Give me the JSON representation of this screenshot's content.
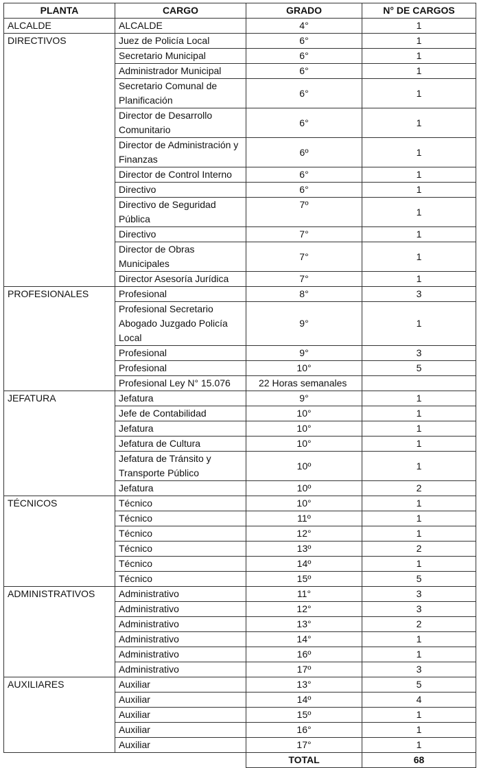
{
  "headers": {
    "planta": "PLANTA",
    "cargo": "CARGO",
    "grado": "GRADO",
    "n": "N° DE CARGOS"
  },
  "groups": [
    {
      "planta": "ALCALDE",
      "rows": [
        {
          "cargo": "ALCALDE",
          "grado": "4°",
          "n": "1"
        }
      ]
    },
    {
      "planta": "DIRECTIVOS",
      "rows": [
        {
          "cargo": "Juez de Policía Local",
          "grado": "6°",
          "n": "1"
        },
        {
          "cargo": "Secretario Municipal",
          "grado": "6°",
          "n": "1"
        },
        {
          "cargo": "Administrador Municipal",
          "grado": "6°",
          "n": "1"
        },
        {
          "cargo": "Secretario Comunal de Planificación",
          "grado": "6°",
          "n": "1"
        },
        {
          "cargo": "Director de Desarrollo Comunitario",
          "grado": "6°",
          "n": "1"
        },
        {
          "cargo": "Director de Administración y Finanzas",
          "grado": "6º",
          "n": "1"
        },
        {
          "cargo": "Director de Control Interno",
          "grado": "6°",
          "n": "1"
        },
        {
          "cargo": "Directivo",
          "grado": "6°",
          "n": "1"
        },
        {
          "cargo": "Directivo de Seguridad Pública",
          "grado": "7º",
          "n": "1"
        },
        {
          "cargo": "Directivo",
          "grado": "7°",
          "n": "1"
        },
        {
          "cargo": "Director de Obras Municipales",
          "grado": "7°",
          "n": "1"
        },
        {
          "cargo": "Director Asesoría Jurídica",
          "grado": "7°",
          "n": "1"
        }
      ]
    },
    {
      "planta": "PROFESIONALES",
      "rows": [
        {
          "cargo": "Profesional",
          "grado": "8°",
          "n": "3"
        },
        {
          "cargo": "Profesional Secretario Abogado  Juzgado Policía Local",
          "grado": "9°",
          "n": "1"
        },
        {
          "cargo": "Profesional",
          "grado": "9°",
          "n": "3"
        },
        {
          "cargo": "Profesional",
          "grado": "10°",
          "n": "5"
        },
        {
          "cargo": "Profesional Ley N° 15.076",
          "grado": "22 Horas semanales",
          "n": ""
        }
      ]
    },
    {
      "planta": "JEFATURA",
      "rows": [
        {
          "cargo": "Jefatura",
          "grado": "9°",
          "n": "1"
        },
        {
          "cargo": "Jefe de Contabilidad",
          "grado": "10°",
          "n": "1"
        },
        {
          "cargo": "Jefatura",
          "grado": "10°",
          "n": "1"
        },
        {
          "cargo": "Jefatura de Cultura",
          "grado": "10°",
          "n": "1"
        },
        {
          "cargo": "Jefatura de Tránsito y Transporte Público",
          "grado": "10º",
          "n": "1"
        },
        {
          "cargo": "Jefatura",
          "grado": "10º",
          "n": "2"
        }
      ]
    },
    {
      "planta": "TÉCNICOS",
      "rows": [
        {
          "cargo": "Técnico",
          "grado": "10°",
          "n": "1"
        },
        {
          "cargo": "Técnico",
          "grado": "11º",
          "n": "1"
        },
        {
          "cargo": "Técnico",
          "grado": "12°",
          "n": "1"
        },
        {
          "cargo": "Técnico",
          "grado": "13º",
          "n": "2"
        },
        {
          "cargo": "Técnico",
          "grado": "14º",
          "n": "1"
        },
        {
          "cargo": "Técnico",
          "grado": "15º",
          "n": "5"
        }
      ]
    },
    {
      "planta": "ADMINISTRATIVOS",
      "rows": [
        {
          "cargo": "Administrativo",
          "grado": "11°",
          "n": "3"
        },
        {
          "cargo": "Administrativo",
          "grado": "12°",
          "n": "3"
        },
        {
          "cargo": "Administrativo",
          "grado": "13°",
          "n": "2"
        },
        {
          "cargo": "Administrativo",
          "grado": "14°",
          "n": "1"
        },
        {
          "cargo": "Administrativo",
          "grado": "16º",
          "n": "1"
        },
        {
          "cargo": "Administrativo",
          "grado": "17º",
          "n": "3"
        }
      ]
    },
    {
      "planta": "AUXILIARES",
      "rows": [
        {
          "cargo": "Auxiliar",
          "grado": "13°",
          "n": "5"
        },
        {
          "cargo": "Auxiliar",
          "grado": "14º",
          "n": "4"
        },
        {
          "cargo": "Auxiliar",
          "grado": "15º",
          "n": "1"
        },
        {
          "cargo": "Auxiliar",
          "grado": "16°",
          "n": "1"
        },
        {
          "cargo": "Auxiliar",
          "grado": "17°",
          "n": "1"
        }
      ]
    }
  ],
  "total": {
    "label": "TOTAL",
    "value": "68"
  }
}
